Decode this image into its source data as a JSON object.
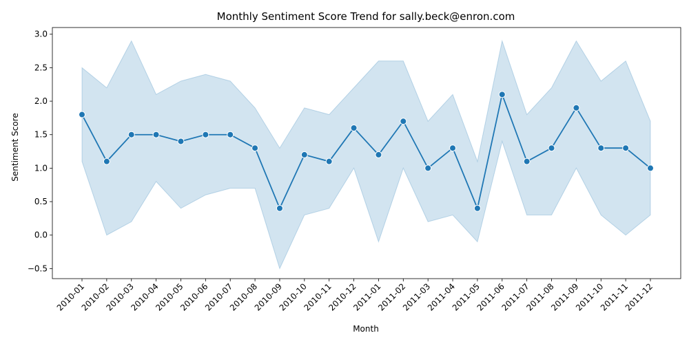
{
  "chart_data": {
    "type": "line",
    "title": "Monthly Sentiment Score Trend for sally.beck@enron.com",
    "xlabel": "Month",
    "ylabel": "Sentiment Score",
    "ylim": [
      -0.65,
      3.1
    ],
    "yticks": [
      -0.5,
      0.0,
      0.5,
      1.0,
      1.5,
      2.0,
      2.5,
      3.0
    ],
    "ytick_labels": [
      "−0.5",
      "0.0",
      "0.5",
      "1.0",
      "1.5",
      "2.0",
      "2.5",
      "3.0"
    ],
    "grid": false,
    "categories": [
      "2010-01",
      "2010-02",
      "2010-03",
      "2010-04",
      "2010-05",
      "2010-06",
      "2010-07",
      "2010-08",
      "2010-09",
      "2010-10",
      "2010-11",
      "2010-12",
      "2011-01",
      "2011-02",
      "2011-03",
      "2011-04",
      "2011-05",
      "2011-06",
      "2011-07",
      "2011-08",
      "2011-09",
      "2011-10",
      "2011-11",
      "2011-12"
    ],
    "series": [
      {
        "values": [
          1.8,
          1.1,
          1.5,
          1.5,
          1.4,
          1.5,
          1.5,
          1.3,
          0.4,
          1.2,
          1.1,
          1.6,
          1.2,
          1.7,
          1.0,
          1.3,
          0.4,
          2.1,
          1.1,
          1.3,
          1.9,
          1.3,
          1.3,
          1.0
        ],
        "ci_upper": [
          2.5,
          2.2,
          2.9,
          2.1,
          2.3,
          2.4,
          2.3,
          1.9,
          1.3,
          1.9,
          1.8,
          2.2,
          2.6,
          2.6,
          1.7,
          2.1,
          1.1,
          2.9,
          1.8,
          2.2,
          2.9,
          2.3,
          2.6,
          1.7
        ],
        "ci_lower": [
          1.1,
          0.0,
          0.2,
          0.8,
          0.4,
          0.6,
          0.7,
          0.7,
          -0.5,
          0.3,
          0.4,
          1.0,
          -0.1,
          1.0,
          0.2,
          0.3,
          -0.1,
          1.4,
          0.3,
          0.3,
          1.0,
          0.3,
          0.0,
          0.3
        ]
      }
    ],
    "colors": {
      "line": "#1f77b4",
      "band": "#1f77b4",
      "marker_edge": "#ffffff"
    }
  }
}
